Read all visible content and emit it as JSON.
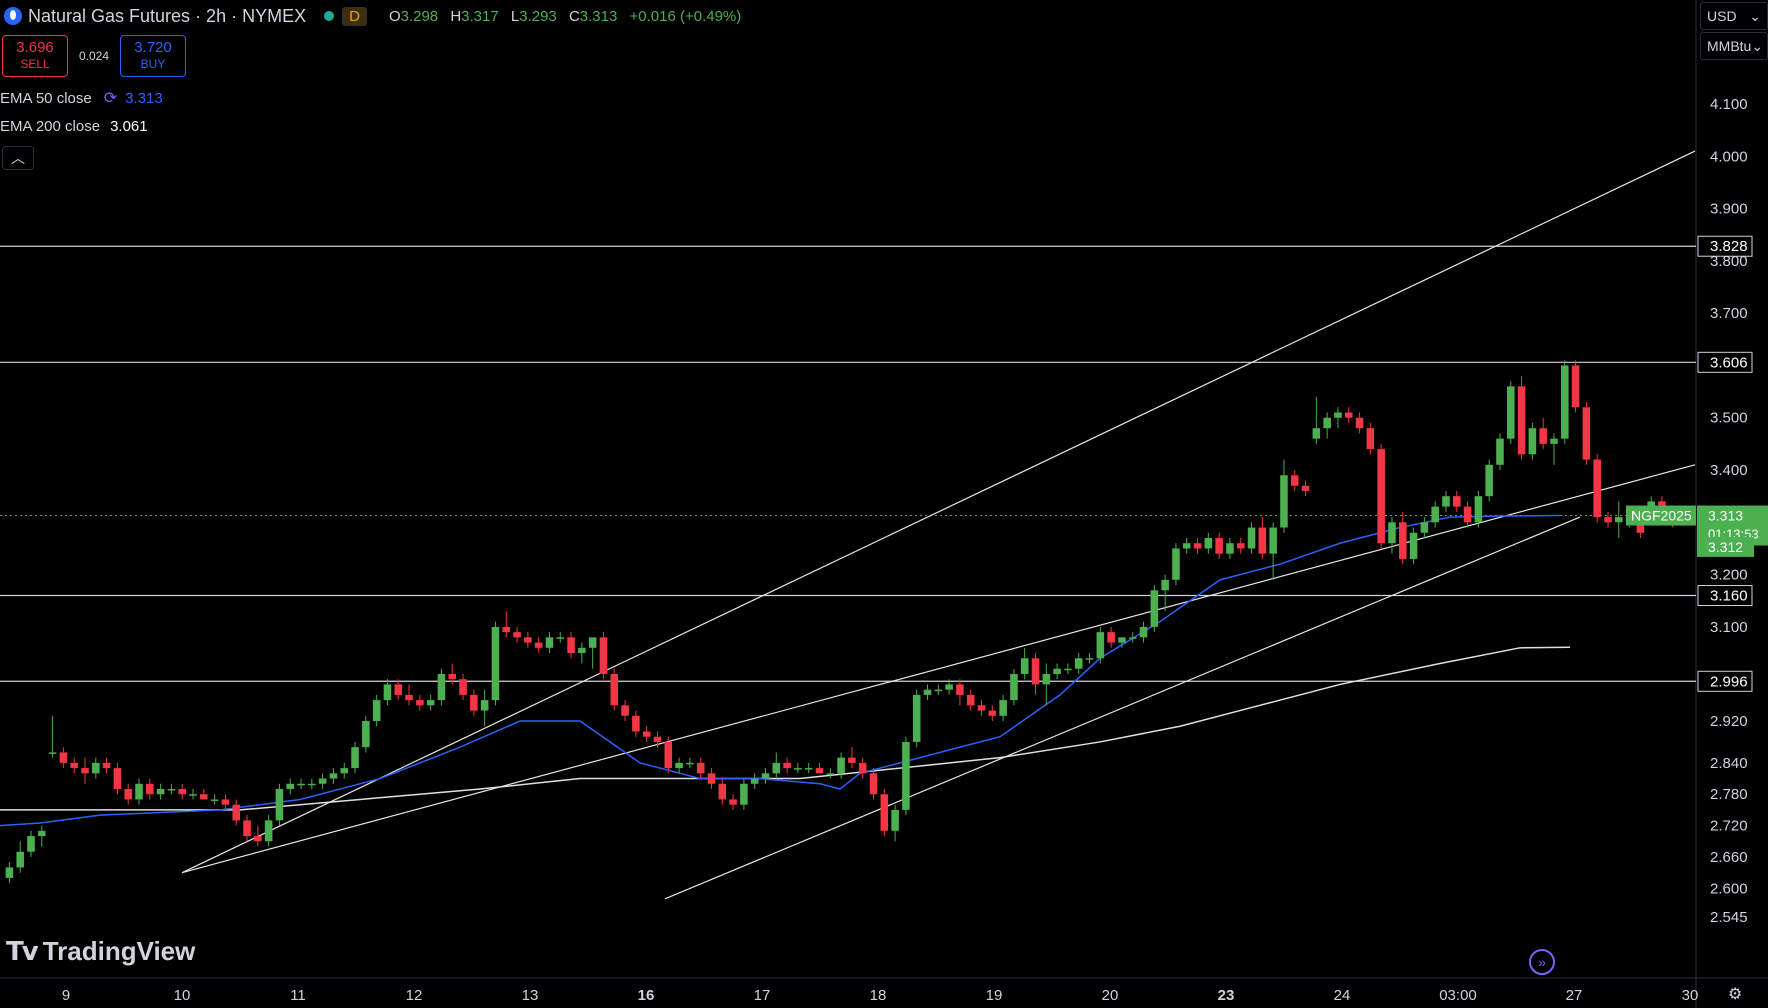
{
  "header": {
    "symbol_title": "Natural Gas Futures · 2h · NYMEX",
    "market_badge": "D",
    "ohlc": {
      "o_label": "O",
      "o": "3.298",
      "h_label": "H",
      "h": "3.317",
      "l_label": "L",
      "l": "3.293",
      "c_label": "C",
      "c": "3.313",
      "change": "+0.016 (+0.49%)"
    }
  },
  "trade": {
    "sell_price": "3.696",
    "sell_label": "SELL",
    "spread": "0.024",
    "buy_price": "3.720",
    "buy_label": "BUY"
  },
  "indicators": {
    "ema50_label": "EMA 50 close",
    "ema50_value": "3.313",
    "ema200_label": "EMA 200 close",
    "ema200_value": "3.061"
  },
  "price_axis": {
    "currency": "USD",
    "unit": "MMBtu",
    "symbol_tag": "NGF2025",
    "last_price": "3.313",
    "countdown": "01:13:53",
    "ema_tag": "3.312"
  },
  "brand": "TradingView",
  "colors": {
    "up": "#4caf50",
    "down": "#f23645",
    "ema50": "#2962ff",
    "ema200": "#e0e0e0",
    "hline": "#d1d4dc",
    "last_price": "#4caf50",
    "background": "#000000"
  },
  "chart_data": {
    "type": "candlestick",
    "ylim": [
      2.5,
      4.2
    ],
    "y_ticks": [
      "4.100",
      "4.000",
      "3.900",
      "3.800",
      "3.700",
      "3.500",
      "3.400",
      "3.200",
      "3.100",
      "2.920",
      "2.840",
      "2.780",
      "2.720",
      "2.660",
      "2.600",
      "2.545"
    ],
    "x_ticks": [
      "9",
      "10",
      "11",
      "12",
      "13",
      "16",
      "17",
      "18",
      "19",
      "20",
      "23",
      "24",
      "03:00",
      "27",
      "30"
    ],
    "horizontal_levels": [
      "3.828",
      "3.606",
      "3.160",
      "2.996"
    ],
    "last_price_line": 3.313,
    "candles": [
      [
        2.62,
        2.65,
        2.61,
        2.64
      ],
      [
        2.64,
        2.69,
        2.63,
        2.67
      ],
      [
        2.67,
        2.71,
        2.66,
        2.7
      ],
      [
        2.7,
        2.72,
        2.68,
        2.71
      ],
      [
        2.86,
        2.93,
        2.85,
        2.86
      ],
      [
        2.86,
        2.87,
        2.83,
        2.84
      ],
      [
        2.84,
        2.85,
        2.82,
        2.83
      ],
      [
        2.83,
        2.85,
        2.8,
        2.82
      ],
      [
        2.82,
        2.85,
        2.81,
        2.84
      ],
      [
        2.84,
        2.85,
        2.82,
        2.83
      ],
      [
        2.83,
        2.84,
        2.78,
        2.79
      ],
      [
        2.79,
        2.8,
        2.76,
        2.77
      ],
      [
        2.77,
        2.81,
        2.76,
        2.8
      ],
      [
        2.8,
        2.81,
        2.77,
        2.78
      ],
      [
        2.78,
        2.8,
        2.77,
        2.79
      ],
      [
        2.79,
        2.8,
        2.78,
        2.79
      ],
      [
        2.79,
        2.8,
        2.77,
        2.78
      ],
      [
        2.78,
        2.79,
        2.77,
        2.78
      ],
      [
        2.78,
        2.79,
        2.77,
        2.77
      ],
      [
        2.77,
        2.78,
        2.76,
        2.77
      ],
      [
        2.77,
        2.78,
        2.75,
        2.76
      ],
      [
        2.76,
        2.77,
        2.72,
        2.73
      ],
      [
        2.73,
        2.74,
        2.69,
        2.7
      ],
      [
        2.7,
        2.72,
        2.68,
        2.69
      ],
      [
        2.69,
        2.74,
        2.68,
        2.73
      ],
      [
        2.73,
        2.8,
        2.72,
        2.79
      ],
      [
        2.79,
        2.81,
        2.78,
        2.8
      ],
      [
        2.8,
        2.81,
        2.79,
        2.8
      ],
      [
        2.8,
        2.81,
        2.79,
        2.8
      ],
      [
        2.8,
        2.82,
        2.79,
        2.81
      ],
      [
        2.81,
        2.83,
        2.8,
        2.82
      ],
      [
        2.82,
        2.84,
        2.81,
        2.83
      ],
      [
        2.83,
        2.88,
        2.82,
        2.87
      ],
      [
        2.87,
        2.93,
        2.86,
        2.92
      ],
      [
        2.92,
        2.97,
        2.91,
        2.96
      ],
      [
        2.96,
        3.0,
        2.95,
        2.99
      ],
      [
        2.99,
        3.0,
        2.96,
        2.97
      ],
      [
        2.97,
        2.99,
        2.95,
        2.96
      ],
      [
        2.96,
        2.97,
        2.94,
        2.95
      ],
      [
        2.95,
        2.97,
        2.94,
        2.96
      ],
      [
        2.96,
        3.02,
        2.95,
        3.01
      ],
      [
        3.01,
        3.03,
        2.99,
        3.0
      ],
      [
        3.0,
        3.01,
        2.96,
        2.97
      ],
      [
        2.97,
        2.98,
        2.93,
        2.94
      ],
      [
        2.94,
        2.98,
        2.91,
        2.96
      ],
      [
        2.96,
        3.11,
        2.95,
        3.1
      ],
      [
        3.1,
        3.13,
        3.08,
        3.09
      ],
      [
        3.09,
        3.1,
        3.07,
        3.08
      ],
      [
        3.08,
        3.09,
        3.06,
        3.07
      ],
      [
        3.07,
        3.08,
        3.05,
        3.06
      ],
      [
        3.06,
        3.09,
        3.05,
        3.08
      ],
      [
        3.08,
        3.09,
        3.07,
        3.08
      ],
      [
        3.08,
        3.09,
        3.04,
        3.05
      ],
      [
        3.05,
        3.07,
        3.03,
        3.06
      ],
      [
        3.06,
        3.07,
        3.02,
        3.08
      ],
      [
        3.08,
        3.09,
        3.0,
        3.01
      ],
      [
        3.01,
        3.02,
        2.94,
        2.95
      ],
      [
        2.95,
        2.96,
        2.92,
        2.93
      ],
      [
        2.93,
        2.94,
        2.89,
        2.9
      ],
      [
        2.9,
        2.91,
        2.88,
        2.89
      ],
      [
        2.89,
        2.9,
        2.87,
        2.88
      ],
      [
        2.88,
        2.89,
        2.82,
        2.83
      ],
      [
        2.83,
        2.85,
        2.82,
        2.84
      ],
      [
        2.84,
        2.85,
        2.83,
        2.84
      ],
      [
        2.84,
        2.85,
        2.81,
        2.82
      ],
      [
        2.82,
        2.83,
        2.79,
        2.8
      ],
      [
        2.8,
        2.81,
        2.76,
        2.77
      ],
      [
        2.77,
        2.78,
        2.75,
        2.76
      ],
      [
        2.76,
        2.81,
        2.75,
        2.8
      ],
      [
        2.8,
        2.82,
        2.79,
        2.81
      ],
      [
        2.81,
        2.83,
        2.8,
        2.82
      ],
      [
        2.82,
        2.86,
        2.81,
        2.84
      ],
      [
        2.84,
        2.85,
        2.82,
        2.83
      ],
      [
        2.83,
        2.84,
        2.82,
        2.83
      ],
      [
        2.83,
        2.84,
        2.82,
        2.83
      ],
      [
        2.83,
        2.84,
        2.82,
        2.82
      ],
      [
        2.82,
        2.83,
        2.81,
        2.82
      ],
      [
        2.82,
        2.86,
        2.81,
        2.85
      ],
      [
        2.85,
        2.87,
        2.83,
        2.84
      ],
      [
        2.84,
        2.85,
        2.81,
        2.82
      ],
      [
        2.82,
        2.83,
        2.77,
        2.78
      ],
      [
        2.78,
        2.79,
        2.7,
        2.71
      ],
      [
        2.71,
        2.76,
        2.69,
        2.75
      ],
      [
        2.75,
        2.89,
        2.74,
        2.88
      ],
      [
        2.88,
        2.98,
        2.87,
        2.97
      ],
      [
        2.97,
        2.99,
        2.96,
        2.98
      ],
      [
        2.98,
        2.99,
        2.97,
        2.98
      ],
      [
        2.98,
        3.0,
        2.97,
        2.99
      ],
      [
        2.99,
        3.0,
        2.95,
        2.97
      ],
      [
        2.97,
        2.98,
        2.94,
        2.95
      ],
      [
        2.95,
        2.96,
        2.93,
        2.94
      ],
      [
        2.94,
        2.95,
        2.92,
        2.93
      ],
      [
        2.93,
        2.97,
        2.92,
        2.96
      ],
      [
        2.96,
        3.02,
        2.95,
        3.01
      ],
      [
        3.01,
        3.06,
        3.0,
        3.04
      ],
      [
        3.04,
        3.05,
        2.97,
        2.99
      ],
      [
        2.99,
        3.03,
        2.95,
        3.01
      ],
      [
        3.01,
        3.03,
        3.0,
        3.02
      ],
      [
        3.02,
        3.03,
        3.01,
        3.02
      ],
      [
        3.02,
        3.05,
        3.01,
        3.04
      ],
      [
        3.04,
        3.05,
        3.03,
        3.04
      ],
      [
        3.04,
        3.1,
        3.03,
        3.09
      ],
      [
        3.09,
        3.1,
        3.06,
        3.07
      ],
      [
        3.07,
        3.08,
        3.06,
        3.08
      ],
      [
        3.08,
        3.09,
        3.07,
        3.08
      ],
      [
        3.08,
        3.11,
        3.07,
        3.1
      ],
      [
        3.1,
        3.18,
        3.09,
        3.17
      ],
      [
        3.17,
        3.2,
        3.13,
        3.19
      ],
      [
        3.19,
        3.26,
        3.18,
        3.25
      ],
      [
        3.25,
        3.27,
        3.24,
        3.26
      ],
      [
        3.26,
        3.27,
        3.24,
        3.25
      ],
      [
        3.25,
        3.28,
        3.24,
        3.27
      ],
      [
        3.27,
        3.28,
        3.23,
        3.24
      ],
      [
        3.24,
        3.27,
        3.23,
        3.26
      ],
      [
        3.26,
        3.27,
        3.24,
        3.25
      ],
      [
        3.25,
        3.3,
        3.24,
        3.29
      ],
      [
        3.29,
        3.31,
        3.23,
        3.24
      ],
      [
        3.24,
        3.3,
        3.19,
        3.29
      ],
      [
        3.29,
        3.42,
        3.28,
        3.39
      ],
      [
        3.39,
        3.4,
        3.36,
        3.37
      ],
      [
        3.37,
        3.38,
        3.35,
        3.36
      ],
      [
        3.46,
        3.54,
        3.45,
        3.48
      ],
      [
        3.48,
        3.51,
        3.46,
        3.5
      ],
      [
        3.5,
        3.52,
        3.48,
        3.51
      ],
      [
        3.51,
        3.52,
        3.49,
        3.5
      ],
      [
        3.5,
        3.51,
        3.47,
        3.48
      ],
      [
        3.48,
        3.49,
        3.43,
        3.44
      ],
      [
        3.44,
        3.45,
        3.25,
        3.26
      ],
      [
        3.26,
        3.31,
        3.24,
        3.3
      ],
      [
        3.3,
        3.32,
        3.22,
        3.23
      ],
      [
        3.23,
        3.29,
        3.22,
        3.28
      ],
      [
        3.28,
        3.31,
        3.27,
        3.3
      ],
      [
        3.3,
        3.34,
        3.29,
        3.33
      ],
      [
        3.33,
        3.36,
        3.32,
        3.35
      ],
      [
        3.35,
        3.36,
        3.32,
        3.33
      ],
      [
        3.33,
        3.34,
        3.29,
        3.3
      ],
      [
        3.3,
        3.36,
        3.29,
        3.35
      ],
      [
        3.35,
        3.42,
        3.34,
        3.41
      ],
      [
        3.41,
        3.47,
        3.4,
        3.46
      ],
      [
        3.46,
        3.57,
        3.45,
        3.56
      ],
      [
        3.56,
        3.58,
        3.42,
        3.43
      ],
      [
        3.43,
        3.49,
        3.42,
        3.48
      ],
      [
        3.48,
        3.5,
        3.44,
        3.45
      ],
      [
        3.45,
        3.47,
        3.41,
        3.46
      ],
      [
        3.46,
        3.61,
        3.45,
        3.6
      ],
      [
        3.6,
        3.61,
        3.51,
        3.52
      ],
      [
        3.52,
        3.53,
        3.41,
        3.42
      ],
      [
        3.42,
        3.43,
        3.3,
        3.31
      ],
      [
        3.31,
        3.32,
        3.29,
        3.3
      ],
      [
        3.3,
        3.34,
        3.27,
        3.31
      ],
      [
        3.31,
        3.32,
        3.29,
        3.3
      ],
      [
        3.3,
        3.32,
        3.27,
        3.28
      ],
      [
        3.33,
        3.35,
        3.32,
        3.34
      ],
      [
        3.34,
        3.35,
        3.3,
        3.31
      ],
      [
        3.31,
        3.32,
        3.29,
        3.3
      ],
      [
        3.298,
        3.317,
        3.293,
        3.313
      ]
    ],
    "ema50": [
      [
        0,
        2.72
      ],
      [
        40,
        2.725
      ],
      [
        100,
        2.74
      ],
      [
        160,
        2.745
      ],
      [
        220,
        2.75
      ],
      [
        300,
        2.77
      ],
      [
        380,
        2.81
      ],
      [
        460,
        2.87
      ],
      [
        520,
        2.92
      ],
      [
        580,
        2.92
      ],
      [
        640,
        2.84
      ],
      [
        700,
        2.81
      ],
      [
        760,
        2.81
      ],
      [
        820,
        2.8
      ],
      [
        840,
        2.79
      ],
      [
        860,
        2.82
      ],
      [
        920,
        2.85
      ],
      [
        1000,
        2.89
      ],
      [
        1060,
        2.97
      ],
      [
        1100,
        3.04
      ],
      [
        1160,
        3.11
      ],
      [
        1220,
        3.19
      ],
      [
        1280,
        3.22
      ],
      [
        1340,
        3.26
      ],
      [
        1400,
        3.29
      ],
      [
        1450,
        3.31
      ],
      [
        1500,
        3.312
      ],
      [
        1560,
        3.313
      ]
    ],
    "ema200": [
      [
        0,
        2.75
      ],
      [
        120,
        2.75
      ],
      [
        240,
        2.75
      ],
      [
        360,
        2.77
      ],
      [
        480,
        2.79
      ],
      [
        580,
        2.81
      ],
      [
        700,
        2.81
      ],
      [
        800,
        2.81
      ],
      [
        900,
        2.83
      ],
      [
        1000,
        2.85
      ],
      [
        1100,
        2.88
      ],
      [
        1180,
        2.91
      ],
      [
        1260,
        2.95
      ],
      [
        1340,
        2.99
      ],
      [
        1440,
        3.03
      ],
      [
        1520,
        3.06
      ],
      [
        1570,
        3.061
      ]
    ],
    "trendlines": [
      {
        "from": [
          182,
          2.63
        ],
        "to": [
          1695,
          3.41
        ]
      },
      {
        "from": [
          665,
          2.58
        ],
        "to": [
          1580,
          3.31
        ]
      },
      {
        "from": [
          182,
          2.63
        ],
        "to": [
          1695,
          4.01
        ]
      }
    ]
  }
}
